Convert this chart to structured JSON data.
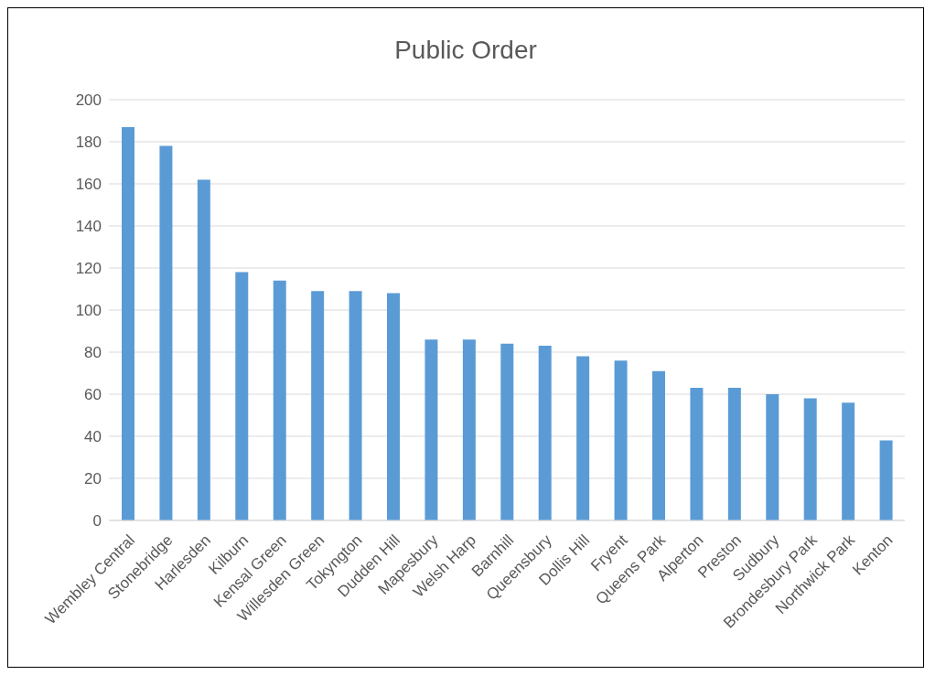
{
  "chart_data": {
    "type": "bar",
    "title": "Public Order",
    "categories": [
      "Wembley Central",
      "Stonebridge",
      "Harlesden",
      "Kilburn",
      "Kensal Green",
      "Willesden Green",
      "Tokyngton",
      "Dudden Hill",
      "Mapesbury",
      "Welsh Harp",
      "Barnhill",
      "Queensbury",
      "Dollis Hill",
      "Fryent",
      "Queens Park",
      "Alperton",
      "Preston",
      "Sudbury",
      "Brondesbury Park",
      "Northwick Park",
      "Kenton"
    ],
    "values": [
      187,
      178,
      162,
      118,
      114,
      109,
      109,
      108,
      86,
      86,
      84,
      83,
      78,
      76,
      71,
      63,
      63,
      60,
      58,
      56,
      38
    ],
    "color": "#5b9bd5",
    "ylim": [
      0,
      200
    ],
    "yticks": [
      0,
      20,
      40,
      60,
      80,
      100,
      120,
      140,
      160,
      180,
      200
    ],
    "grid": "y"
  }
}
